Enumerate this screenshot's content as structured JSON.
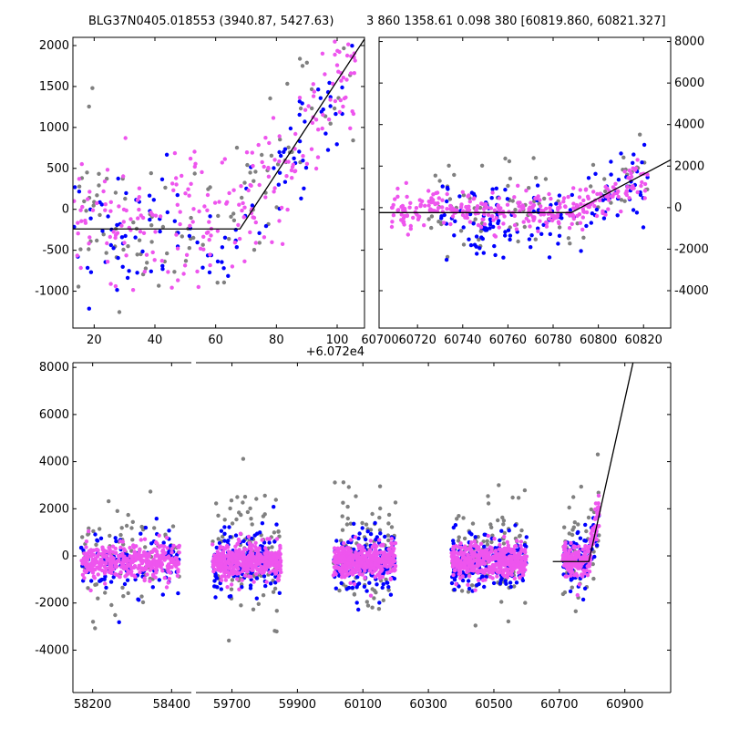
{
  "titles": {
    "left": "BLG37N0405.018553 (3940.87, 5427.63)",
    "right": "3 860 1358.61 0.098 380 [60819.860, 60821.327]"
  },
  "colors": {
    "blue": "#0000ff",
    "magenta": "#ee55ee",
    "gray": "#808080",
    "line": "#000000"
  },
  "chart_data": [
    {
      "id": "zoom",
      "type": "scatter",
      "xlabel": "",
      "ylabel": "",
      "xlim": [
        13,
        109
      ],
      "ylim": [
        -1450,
        2100
      ],
      "x_offset_label": "+6.072e4",
      "xticks": [
        20,
        40,
        60,
        80,
        100
      ],
      "yticks": [
        -1000,
        -500,
        0,
        500,
        1000,
        1500,
        2000
      ],
      "model_line": {
        "x": [
          13,
          68,
          109
        ],
        "y": [
          -240,
          -240,
          2080
        ]
      },
      "series": [
        {
          "name": "blue",
          "n": 110,
          "xrange": [
            13,
            105
          ],
          "baseline": -230,
          "scatter": 420,
          "rise_start": 68,
          "rise_slope": 50,
          "seed": 3
        },
        {
          "name": "magenta",
          "n": 230,
          "xrange": [
            13,
            106
          ],
          "baseline": -150,
          "scatter": 380,
          "rise_start": 68,
          "rise_slope": 52,
          "seed": 7
        },
        {
          "name": "gray",
          "n": 110,
          "xrange": [
            13,
            106
          ],
          "baseline": -120,
          "scatter": 450,
          "rise_start": 68,
          "rise_slope": 50,
          "seed": 11
        }
      ]
    },
    {
      "id": "medium",
      "type": "scatter",
      "xlim": [
        60703,
        60832
      ],
      "ylim": [
        -5800,
        8200
      ],
      "xticks": [
        60700,
        60720,
        60740,
        60760,
        60780,
        60800,
        60820
      ],
      "yticks": [
        -4000,
        -2000,
        0,
        2000,
        4000,
        6000,
        8000
      ],
      "model_line": {
        "x": [
          60703,
          60788,
          60832
        ],
        "y": [
          -240,
          -240,
          2300
        ]
      },
      "series": [
        {
          "name": "blue",
          "n": 140,
          "xrange": [
            60730,
            60822
          ],
          "baseline": -600,
          "scatter": 900,
          "rise_start": 60790,
          "rise_slope": 60,
          "seed": 13
        },
        {
          "name": "magenta",
          "n": 320,
          "xrange": [
            60708,
            60822
          ],
          "baseline": -150,
          "scatter": 450,
          "rise_start": 60790,
          "rise_slope": 50,
          "seed": 17
        },
        {
          "name": "gray",
          "n": 90,
          "xrange": [
            60725,
            60822
          ],
          "baseline": 0,
          "scatter": 1200,
          "rise_start": 60790,
          "rise_slope": 50,
          "seed": 19
        }
      ]
    },
    {
      "id": "full",
      "type": "scatter",
      "ylim": [
        -5800,
        8200
      ],
      "yticks": [
        -4000,
        -2000,
        0,
        2000,
        4000,
        6000,
        8000
      ],
      "segments": [
        {
          "xlim": [
            58150,
            58450
          ],
          "xticks": [
            58200,
            58400
          ]
        },
        {
          "xlim": [
            59590,
            61040
          ],
          "xticks": [
            59700,
            59900,
            60100,
            60300,
            60500,
            60700,
            60900
          ]
        }
      ],
      "model_line": {
        "x": [
          60680,
          60790,
          60925
        ],
        "y": [
          -240,
          -240,
          8200
        ]
      },
      "seasons": [
        {
          "seg": 0,
          "xrange": [
            58170,
            58420
          ],
          "n": [
            130,
            380,
            80
          ],
          "seed": 23
        },
        {
          "seg": 1,
          "xrange": [
            59640,
            59850
          ],
          "n": [
            160,
            420,
            110
          ],
          "seed": 29
        },
        {
          "seg": 1,
          "xrange": [
            60010,
            60200
          ],
          "n": [
            170,
            420,
            100
          ],
          "seed": 31
        },
        {
          "seg": 1,
          "xrange": [
            60370,
            60600
          ],
          "n": [
            190,
            440,
            110
          ],
          "seed": 37
        },
        {
          "seg": 1,
          "xrange": [
            60710,
            60822
          ],
          "n": [
            90,
            200,
            50
          ],
          "seed": 41
        }
      ]
    }
  ]
}
